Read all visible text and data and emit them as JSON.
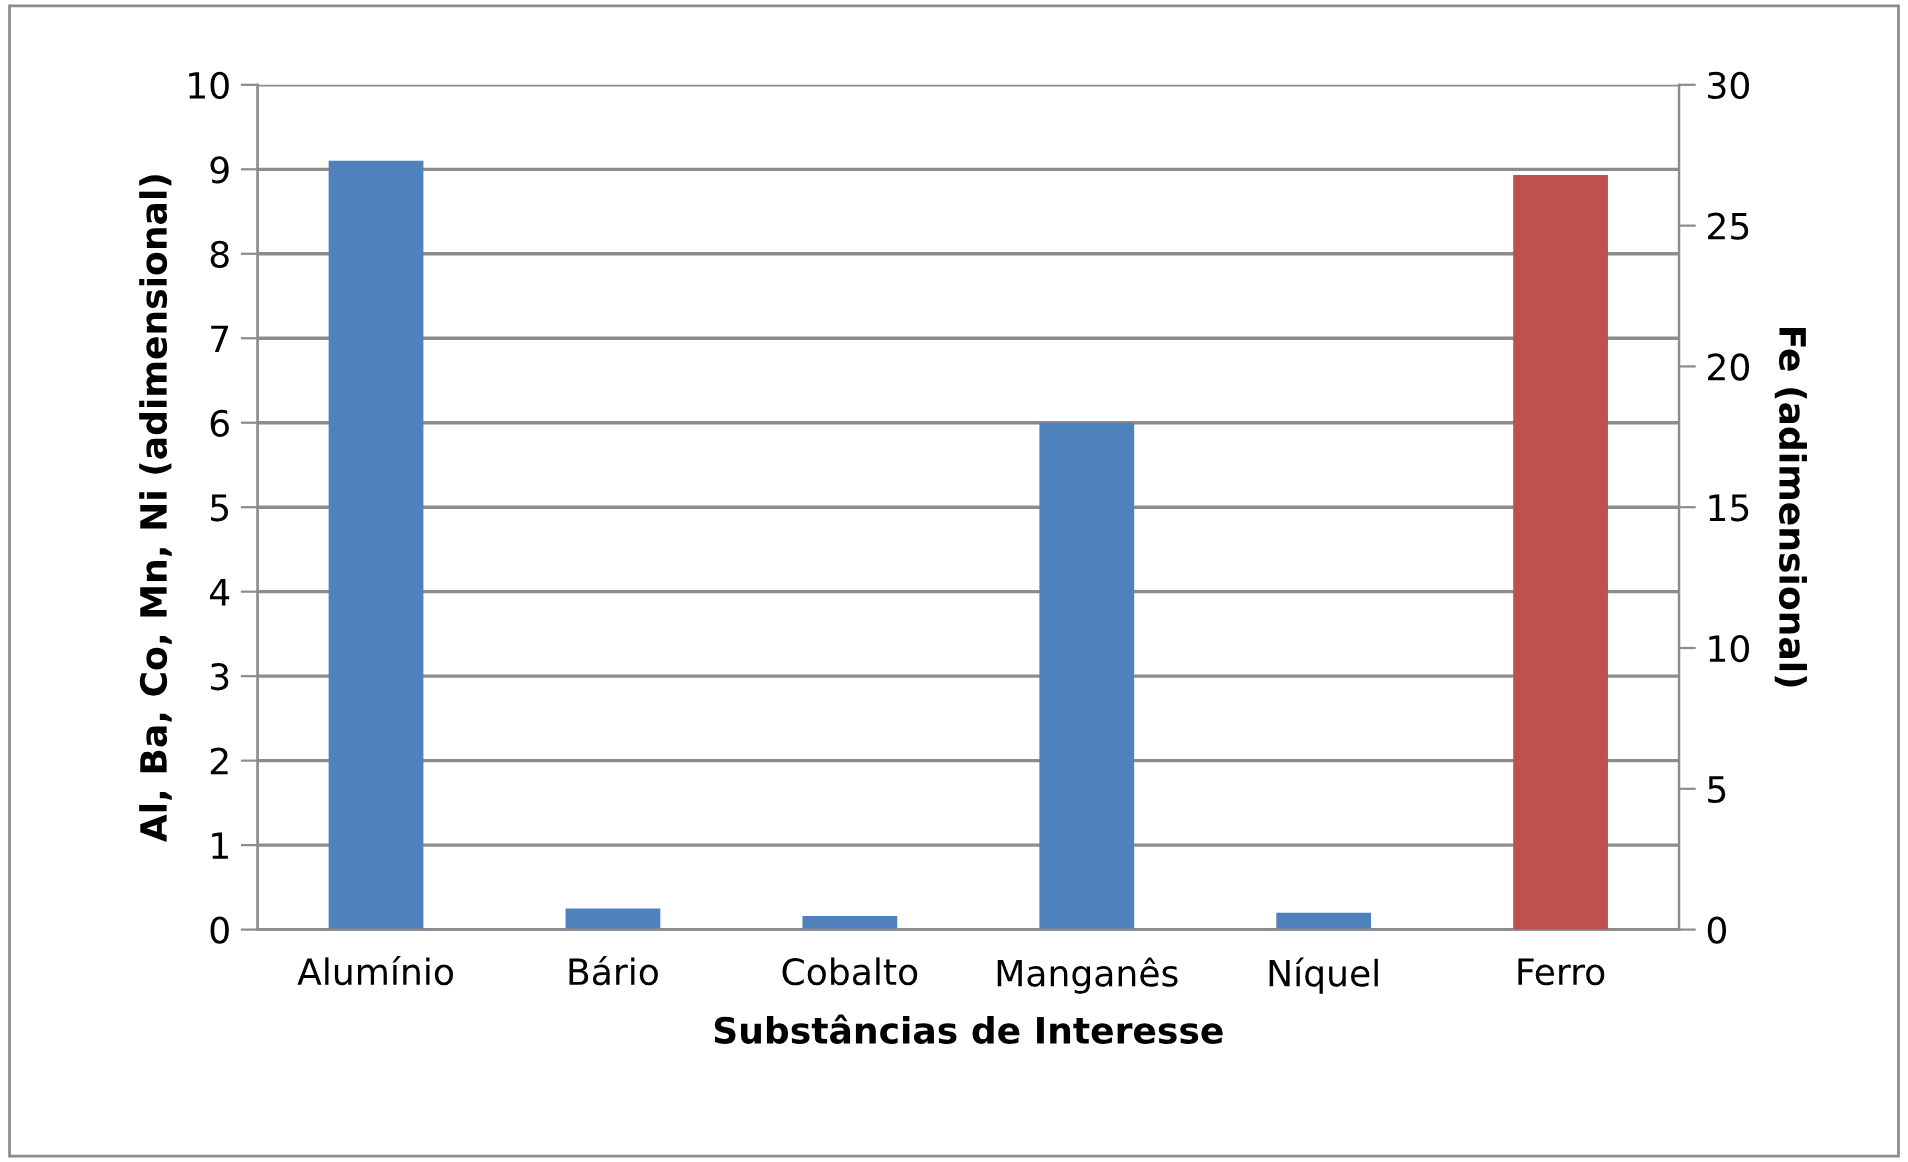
{
  "chart_data": {
    "type": "bar",
    "categories": [
      "Alumínio",
      "Bário",
      "Cobalto",
      "Manganês",
      "Níquel",
      "Ferro"
    ],
    "series": [
      {
        "color": "#4f81bd",
        "values": [
          9.1,
          0.25,
          0.16,
          6.0,
          0.2,
          null
        ]
      },
      {
        "color": "#c0504d",
        "axis": "y2",
        "values": [
          null,
          null,
          null,
          null,
          null,
          26.8
        ]
      }
    ],
    "xlabel": "Substâncias de Interesse",
    "ylabel": "Al, Ba, Co, Mn, Ni (adimensional)",
    "y2label": "Fe (adimensional)",
    "ylim": [
      0,
      10
    ],
    "yticks": [
      0,
      1,
      2,
      3,
      4,
      5,
      6,
      7,
      8,
      9,
      10
    ],
    "y2lim": [
      0,
      30
    ],
    "y2ticks": [
      0,
      5,
      10,
      15,
      20,
      25,
      30
    ],
    "grid": "y",
    "legend": false
  }
}
